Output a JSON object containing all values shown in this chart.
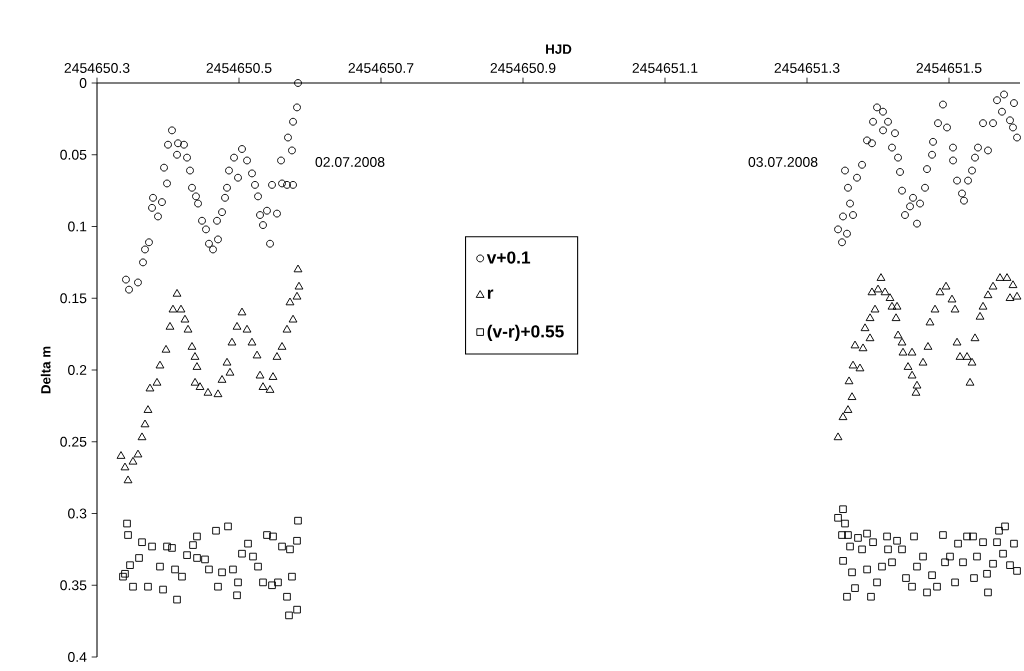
{
  "chart_data": {
    "type": "scatter",
    "xlabel": "HJD",
    "ylabel": "Delta m",
    "xlim": [
      2454650.3,
      2454651.6
    ],
    "xticks": [
      2454650.3,
      2454650.5,
      2454650.7,
      2454650.9,
      2454651.1,
      2454651.3,
      2454651.5
    ],
    "ylim": [
      0.4,
      0
    ],
    "yticks": [
      0,
      0.05,
      0.1,
      0.15,
      0.2,
      0.25,
      0.3,
      0.35,
      0.4
    ],
    "grid": false,
    "legend": "center",
    "annotations": [
      "02.07.2008",
      "03.07.2008"
    ],
    "series": [
      {
        "name": "v+0.1",
        "color": "#000000",
        "marker": "circle",
        "x": [
          2454650.3408,
          2454650.3451,
          2454650.3577,
          2454650.3648,
          2454650.3676,
          2454650.3732,
          2454650.3789,
          2454650.3775,
          2454650.3859,
          2454650.3915,
          2454650.3944,
          2454650.3986,
          2454650.4,
          2454650.4056,
          2454650.4127,
          2454650.4141,
          2454650.4225,
          2454650.4268,
          2454650.431,
          2454650.4338,
          2454650.4394,
          2454650.4423,
          2454650.4479,
          2454650.4535,
          2454650.4577,
          2454650.4634,
          2454650.4704,
          2454650.469,
          2454650.4761,
          2454650.4803,
          2454650.4831,
          2454650.4859,
          2454650.493,
          2454650.4986,
          2454650.5042,
          2454650.5113,
          2454650.5183,
          2454650.5225,
          2454650.5268,
          2454650.5296,
          2454650.5338,
          2454650.5437,
          2454650.5394,
          2454650.5465,
          2454650.5535,
          2454650.5606,
          2454650.5676,
          2454650.5761,
          2454650.5592,
          2454650.569,
          2454650.5746,
          2454650.5761,
          2454650.5817,
          2454650.5831,
          2454651.3437,
          2454651.3493,
          2454651.3563,
          2454651.3507,
          2454651.3648,
          2454651.3606,
          2454651.3535,
          2454651.3577,
          2454651.3704,
          2454651.3775,
          2454651.3845,
          2454651.3915,
          2454651.393,
          2454651.3986,
          2454651.407,
          2454651.4071,
          2454651.4141,
          2454651.4239,
          2454651.4197,
          2454651.4282,
          2454651.431,
          2454651.4338,
          2454651.438,
          2454651.4451,
          2454651.4493,
          2454651.4549,
          2454651.4592,
          2454651.4662,
          2454651.469,
          2454651.4761,
          2454651.4775,
          2454651.4845,
          2454651.4915,
          2454651.4972,
          2454651.5056,
          2454651.5057,
          2454651.5113,
          2454651.5183,
          2454651.5211,
          2454651.5268,
          2454651.5324,
          2454651.5366,
          2454651.5408,
          2454651.5479,
          2454651.5549,
          2454651.562,
          2454651.5676,
          2454651.5746,
          2454651.5775,
          2454651.5859,
          2454651.5901,
          2454651.5958,
          2454651.5915
        ],
        "values": [
          0.137,
          0.144,
          0.139,
          0.125,
          0.116,
          0.111,
          0.08,
          0.087,
          0.093,
          0.083,
          0.059,
          0.07,
          0.043,
          0.033,
          0.05,
          0.042,
          0.043,
          0.052,
          0.061,
          0.073,
          0.079,
          0.084,
          0.096,
          0.102,
          0.112,
          0.116,
          0.109,
          0.096,
          0.09,
          0.08,
          0.073,
          0.061,
          0.052,
          0.066,
          0.046,
          0.054,
          0.063,
          0.071,
          0.079,
          0.092,
          0.099,
          0.112,
          0.089,
          0.071,
          0.091,
          0.07,
          0.071,
          0.071,
          0.054,
          0.038,
          0.047,
          0.027,
          0.017,
          0.0,
          0.102,
          0.111,
          0.105,
          0.093,
          0.092,
          0.084,
          0.061,
          0.073,
          0.066,
          0.057,
          0.04,
          0.042,
          0.027,
          0.017,
          0.02,
          0.033,
          0.027,
          0.035,
          0.045,
          0.052,
          0.062,
          0.075,
          0.092,
          0.086,
          0.08,
          0.098,
          0.084,
          0.073,
          0.06,
          0.05,
          0.041,
          0.028,
          0.015,
          0.031,
          0.045,
          0.054,
          0.068,
          0.077,
          0.082,
          0.068,
          0.061,
          0.052,
          0.045,
          0.028,
          0.047,
          0.028,
          0.012,
          0.02,
          0.008,
          0.026,
          0.031,
          0.038,
          0.014
        ]
      },
      {
        "name": "r",
        "color": "#000000",
        "marker": "triangle",
        "x": [
          2454650.3338,
          2454650.3394,
          2454650.3437,
          2454650.3507,
          2454650.3577,
          2454650.3634,
          2454650.3676,
          2454650.3718,
          2454650.3746,
          2454650.3845,
          2454650.3887,
          2454650.3972,
          2454650.4028,
          2454650.407,
          2454650.4127,
          2454650.4183,
          2454650.4239,
          2454650.4282,
          2454650.4338,
          2454650.438,
          2454650.4408,
          2454650.4381,
          2454650.4451,
          2454650.4563,
          2454650.4704,
          2454650.4761,
          2454650.4831,
          2454650.4873,
          2454650.4901,
          2454650.4972,
          2454650.5042,
          2454650.5113,
          2454650.5183,
          2454650.5254,
          2454650.5296,
          2454650.5338,
          2454650.5437,
          2454650.5479,
          2454650.5535,
          2454650.5606,
          2454650.5676,
          2454650.5718,
          2454650.5761,
          2454650.5817,
          2454650.5845,
          2454650.5831,
          2454651.3437,
          2454651.3507,
          2454651.3577,
          2454651.3634,
          2454651.3592,
          2454651.3648,
          2454651.3746,
          2454651.3676,
          2454651.3789,
          2454651.3817,
          2454651.3887,
          2454651.3888,
          2454651.3958,
          2454651.3915,
          2454651.4,
          2454651.4042,
          2454651.4099,
          2454651.4169,
          2454651.4197,
          2454651.4254,
          2454651.4268,
          2454651.4282,
          2454651.4338,
          2454651.4352,
          2454651.4479,
          2454651.4423,
          2454651.448,
          2454651.4549,
          2454651.4535,
          2454651.4634,
          2454651.4704,
          2454651.4732,
          2454651.4803,
          2454651.4873,
          2454651.4958,
          2454651.5042,
          2454651.5085,
          2454651.5113,
          2454651.5155,
          2454651.5254,
          2454651.5296,
          2454651.5324,
          2454651.5366,
          2454651.5437,
          2454651.5479,
          2454651.5549,
          2454651.562,
          2454651.5718,
          2454651.5817,
          2454651.5901,
          2454651.5958,
          2454651.5859
        ],
        "values": [
          0.26,
          0.268,
          0.277,
          0.264,
          0.259,
          0.247,
          0.238,
          0.228,
          0.213,
          0.209,
          0.197,
          0.186,
          0.17,
          0.158,
          0.147,
          0.158,
          0.165,
          0.172,
          0.184,
          0.191,
          0.198,
          0.209,
          0.212,
          0.216,
          0.217,
          0.207,
          0.195,
          0.202,
          0.181,
          0.17,
          0.16,
          0.172,
          0.181,
          0.19,
          0.204,
          0.212,
          0.214,
          0.205,
          0.191,
          0.184,
          0.172,
          0.153,
          0.165,
          0.149,
          0.142,
          0.13,
          0.247,
          0.233,
          0.228,
          0.219,
          0.208,
          0.197,
          0.199,
          0.183,
          0.185,
          0.171,
          0.178,
          0.164,
          0.158,
          0.146,
          0.144,
          0.136,
          0.146,
          0.15,
          0.156,
          0.164,
          0.156,
          0.176,
          0.181,
          0.188,
          0.188,
          0.198,
          0.204,
          0.211,
          0.216,
          0.195,
          0.184,
          0.167,
          0.158,
          0.146,
          0.142,
          0.151,
          0.158,
          0.181,
          0.191,
          0.191,
          0.209,
          0.195,
          0.178,
          0.163,
          0.156,
          0.148,
          0.142,
          0.136,
          0.136,
          0.141,
          0.149,
          0.15
        ]
      },
      {
        "name": "(v-r)+0.55",
        "color": "#000000",
        "marker": "square",
        "x": [
          2454650.3366,
          2454650.3394,
          2454650.3423,
          2454650.3437,
          2454650.3465,
          2454650.3507,
          2454650.3592,
          2454650.3634,
          2454650.3718,
          2454650.3775,
          2454650.3887,
          2454650.393,
          2454650.3986,
          2454650.4056,
          2454650.4099,
          2454650.4127,
          2454650.4197,
          2454650.4268,
          2454650.4352,
          2454650.4408,
          2454650.4409,
          2454650.4521,
          2454650.4577,
          2454650.4676,
          2454650.4704,
          2454650.4761,
          2454650.4845,
          2454650.4915,
          2454650.4986,
          2454650.4972,
          2454650.5042,
          2454650.5127,
          2454650.5197,
          2454650.5268,
          2454650.5338,
          2454650.5394,
          2454650.5479,
          2454650.5465,
          2454650.5549,
          2454650.5606,
          2454650.5676,
          2454650.5718,
          2454650.5746,
          2454650.5817,
          2454650.5831,
          2454650.5704,
          2454650.5818,
          2454651.3507,
          2454651.3437,
          2454651.3535,
          2454651.3493,
          2454651.3577,
          2454651.3606,
          2454651.3508,
          2454651.3634,
          2454651.3563,
          2454651.3676,
          2454651.3718,
          2454651.3775,
          2454651.3845,
          2454651.3846,
          2454651.3901,
          2454651.393,
          2454651.3986,
          2454651.4056,
          2454651.4127,
          2454651.4141,
          2454651.4197,
          2454651.4268,
          2454651.4338,
          2454651.4394,
          2454651.4479,
          2454651.4507,
          2454651.4549,
          2454651.4634,
          2454651.469,
          2454651.4761,
          2454651.4831,
          2454651.4915,
          2454651.4944,
          2454651.5014,
          2454651.5085,
          2454651.5127,
          2454651.5197,
          2454651.5254,
          2454651.5338,
          2454651.5352,
          2454651.5394,
          2454651.5479,
          2454651.5535,
          2454651.5549,
          2454651.562,
          2454651.5676,
          2454651.5704,
          2454651.5789,
          2454651.5761,
          2454651.5859,
          2454651.5915,
          2454651.5958
        ],
        "values": [
          0.344,
          0.342,
          0.307,
          0.315,
          0.336,
          0.351,
          0.331,
          0.32,
          0.351,
          0.323,
          0.337,
          0.353,
          0.323,
          0.324,
          0.339,
          0.36,
          0.344,
          0.329,
          0.322,
          0.316,
          0.331,
          0.332,
          0.339,
          0.312,
          0.351,
          0.341,
          0.309,
          0.339,
          0.348,
          0.357,
          0.328,
          0.321,
          0.33,
          0.337,
          0.348,
          0.315,
          0.316,
          0.35,
          0.348,
          0.323,
          0.358,
          0.325,
          0.344,
          0.319,
          0.305,
          0.371,
          0.367,
          0.297,
          0.303,
          0.307,
          0.315,
          0.315,
          0.323,
          0.333,
          0.341,
          0.358,
          0.352,
          0.317,
          0.325,
          0.314,
          0.339,
          0.358,
          0.32,
          0.348,
          0.337,
          0.316,
          0.325,
          0.334,
          0.319,
          0.325,
          0.345,
          0.351,
          0.316,
          0.337,
          0.33,
          0.355,
          0.343,
          0.351,
          0.315,
          0.334,
          0.33,
          0.348,
          0.321,
          0.334,
          0.316,
          0.316,
          0.345,
          0.33,
          0.32,
          0.342,
          0.355,
          0.335,
          0.32,
          0.312,
          0.309,
          0.328,
          0.336,
          0.321,
          0.34
        ]
      }
    ]
  }
}
